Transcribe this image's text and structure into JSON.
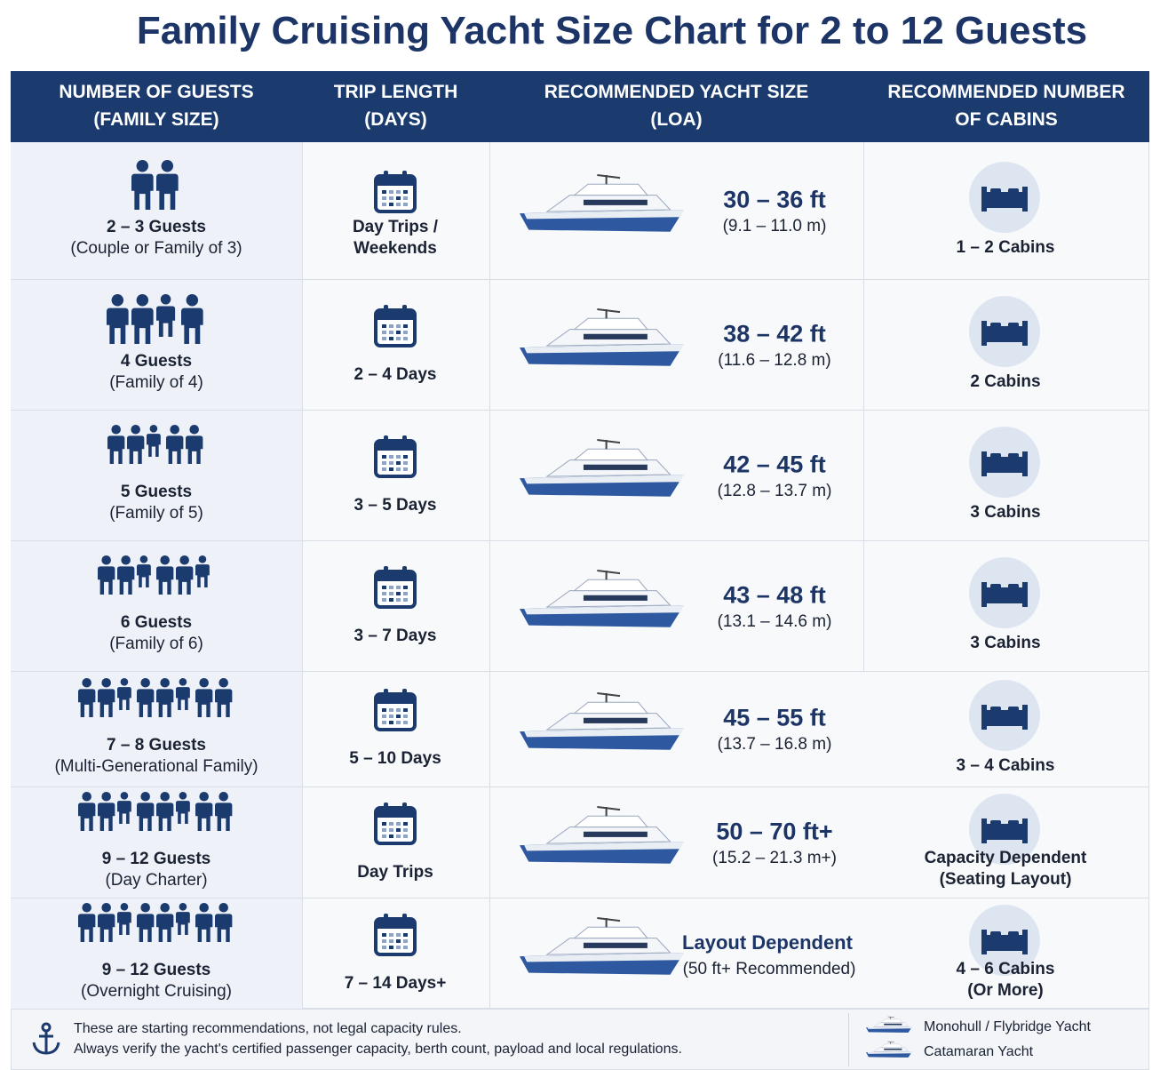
{
  "title": "Family Cruising Yacht Size Chart for 2 to 12 Guests",
  "headers": [
    [
      "NUMBER OF GUESTS",
      "(FAMILY SIZE)"
    ],
    [
      "TRIP LENGTH",
      "(DAYS)"
    ],
    [
      "RECOMMENDED YACHT SIZE",
      "(LOA)"
    ],
    [
      "RECOMMENDED NUMBER",
      "OF CABINS"
    ]
  ],
  "rows": [
    {
      "guests": [
        "2 – 3 Guests",
        "(Couple or Family of 3)"
      ],
      "trip": [
        "Day Trips /",
        "Weekends"
      ],
      "size": "30 – 36 ft",
      "metric": "(9.1 – 11.0 m)",
      "cabins": [
        "1 – 2 Cabins"
      ]
    },
    {
      "guests": [
        "4 Guests",
        "(Family of 4)"
      ],
      "trip": [
        "2 – 4 Days"
      ],
      "size": "38 – 42 ft",
      "metric": "(11.6 – 12.8 m)",
      "cabins": [
        "2 Cabins"
      ]
    },
    {
      "guests": [
        "5 Guests",
        "(Family of 5)"
      ],
      "trip": [
        "3 – 5 Days"
      ],
      "size": "42 – 45 ft",
      "metric": "(12.8 – 13.7 m)",
      "cabins": [
        "3 Cabins"
      ]
    },
    {
      "guests": [
        "6 Guests",
        "(Family of 6)"
      ],
      "trip": [
        "3 – 7 Days"
      ],
      "size": "43 – 48 ft",
      "metric": "(13.1 – 14.6 m)",
      "cabins": [
        "3 Cabins"
      ]
    },
    {
      "guests": [
        "7 – 8 Guests",
        "(Multi-Generational Family)"
      ],
      "trip": [
        "5 – 10 Days"
      ],
      "size": "45 – 55 ft",
      "metric": "(13.7 – 16.8 m)",
      "cabins": [
        "3 – 4 Cabins"
      ]
    },
    {
      "guests": [
        "9 – 12 Guests",
        "(Day Charter)"
      ],
      "trip": [
        "Day Trips"
      ],
      "size": "50 – 70 ft+",
      "metric": "(15.2 – 21.3 m+)",
      "cabins": [
        "Capacity Dependent",
        "(Seating Layout)"
      ]
    },
    {
      "guests": [
        "9 – 12 Guests",
        "(Overnight Cruising)"
      ],
      "trip": [
        "7 – 14 Days+"
      ],
      "size": "Layout Dependent",
      "metric": "(50 ft+ Recommended)",
      "cabins": [
        "4 – 6 Cabins",
        "(Or More)"
      ]
    }
  ],
  "note": [
    "These are starting recommendations, not legal capacity rules.",
    "Always verify the yacht's certified passenger capacity, berth count, payload and local regulations."
  ],
  "legend": [
    "Monohull / Flybridge Yacht",
    "Catamaran Yacht"
  ]
}
